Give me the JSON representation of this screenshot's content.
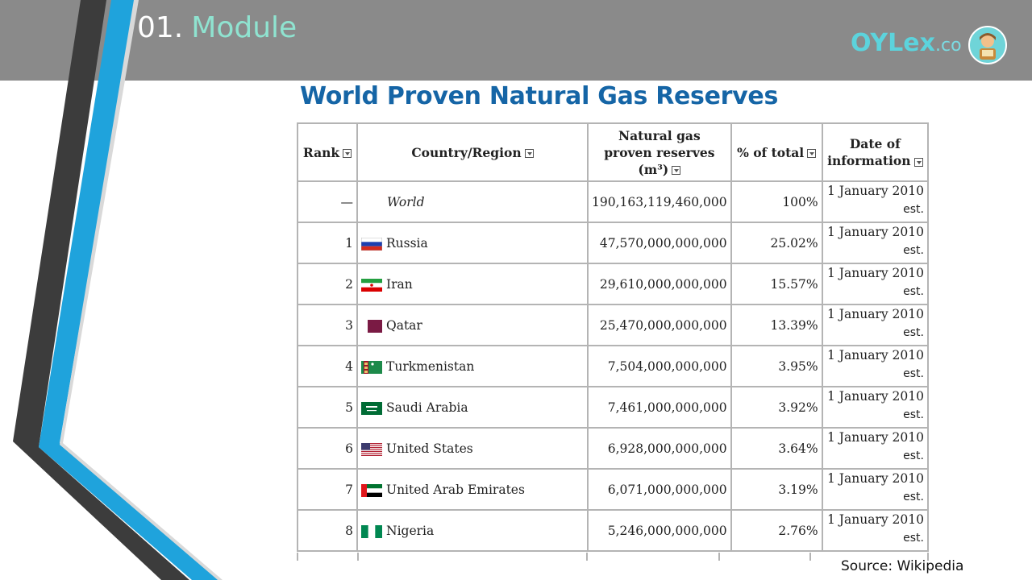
{
  "header": {
    "module_number": "01.",
    "module_label": "Module"
  },
  "logo": {
    "text_main": "OYLex",
    "text_suffix": ".co"
  },
  "slide": {
    "heading": "World Proven Natural Gas Reserves",
    "source": "Source: Wikipedia"
  },
  "table": {
    "headers": {
      "rank": "Rank",
      "country": "Country/Region",
      "reserves_line1": "Natural gas",
      "reserves_line2": "proven reserves",
      "reserves_line3": "(m³)",
      "pct": "% of total",
      "date_line1": "Date of",
      "date_line2": "information"
    },
    "rows": [
      {
        "rank": "—",
        "country": "World",
        "reserves": "190,163,119,460,000",
        "pct": "100%",
        "date": "1 January 2010",
        "est": "est.",
        "flag": "none"
      },
      {
        "rank": "1",
        "country": "Russia",
        "reserves": "47,570,000,000,000",
        "pct": "25.02%",
        "date": "1 January 2010",
        "est": "est.",
        "flag": "russia-flag"
      },
      {
        "rank": "2",
        "country": "Iran",
        "reserves": "29,610,000,000,000",
        "pct": "15.57%",
        "date": "1 January 2010",
        "est": "est.",
        "flag": "iran-flag"
      },
      {
        "rank": "3",
        "country": "Qatar",
        "reserves": "25,470,000,000,000",
        "pct": "13.39%",
        "date": "1 January 2010",
        "est": "est.",
        "flag": "qatar-flag"
      },
      {
        "rank": "4",
        "country": "Turkmenistan",
        "reserves": "7,504,000,000,000",
        "pct": "3.95%",
        "date": "1 January 2010",
        "est": "est.",
        "flag": "turkmenistan-flag"
      },
      {
        "rank": "5",
        "country": "Saudi Arabia",
        "reserves": "7,461,000,000,000",
        "pct": "3.92%",
        "date": "1 January 2010",
        "est": "est.",
        "flag": "saudi-arabia-flag"
      },
      {
        "rank": "6",
        "country": "United States",
        "reserves": "6,928,000,000,000",
        "pct": "3.64%",
        "date": "1 January 2010",
        "est": "est.",
        "flag": "united-states-flag"
      },
      {
        "rank": "7",
        "country": "United Arab Emirates",
        "reserves": "6,071,000,000,000",
        "pct": "3.19%",
        "date": "1 January 2010",
        "est": "est.",
        "flag": "uae-flag"
      },
      {
        "rank": "8",
        "country": "Nigeria",
        "reserves": "5,246,000,000,000",
        "pct": "2.76%",
        "date": "1 January 2010",
        "est": "est.",
        "flag": "nigeria-flag"
      }
    ]
  },
  "colors": {
    "topbar": "#8a8a8a",
    "heading": "#1565a6",
    "module_label": "#8fe3d0",
    "accent_blue": "#1fa3dc",
    "stripe_dark": "#3c3c3c"
  }
}
